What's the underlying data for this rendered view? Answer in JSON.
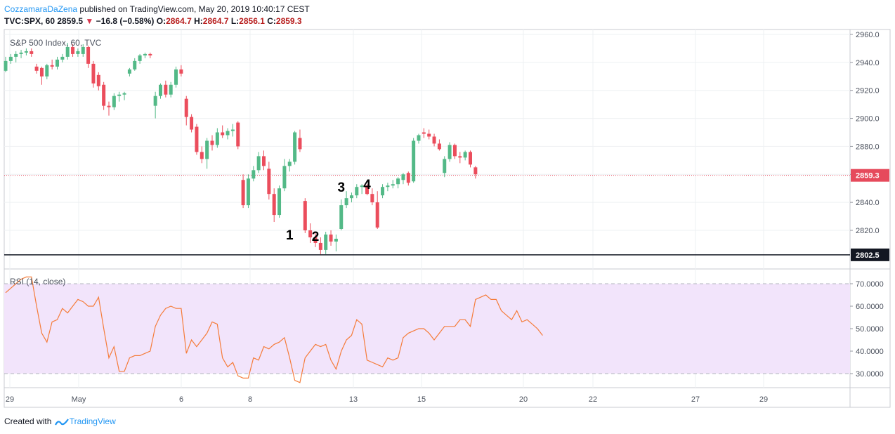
{
  "header": {
    "author": "CozzamaraDaZena",
    "published_text": "published on TradingView.com, May 20, 2019 10:40:17 CEST",
    "symbol": "TVC:SPX, 60",
    "last": "2859.5",
    "change": "−16.8 (−0.58%)",
    "o_label": "O:",
    "o_value": "2864.7",
    "h_label": "H:",
    "h_value": "2864.7",
    "l_label": "L:",
    "l_value": "2856.1",
    "c_label": "C:",
    "c_value": "2859.3"
  },
  "footer": {
    "created_with": "Created with",
    "brand": "TradingView"
  },
  "colors": {
    "up": "#53b987",
    "down": "#eb4d5c",
    "rsi_line": "#f57c3a",
    "rsi_band": "#f2e4fb",
    "price_line": "#e64a5c",
    "accent": "#2196f3"
  },
  "chart_data": [
    {
      "type": "candlestick",
      "title": "S&P 500 Index, 60, TVC",
      "x_tick_labels": [
        "29",
        "May",
        "6",
        "8",
        "13",
        "15",
        "20",
        "22",
        "27",
        "29"
      ],
      "y_tick_labels": [
        "2960.0",
        "2940.0",
        "2920.0",
        "2900.0",
        "2880.0",
        "2860.0",
        "2840.0",
        "2820.0"
      ],
      "ylim": [
        2800,
        2964
      ],
      "current_price_label": "2859.3",
      "current_price": 2859.3,
      "support_level_label": "2802.5",
      "support_level": 2802.5,
      "annotations": [
        {
          "text": "1",
          "bar": 55,
          "price": 2817
        },
        {
          "text": "2",
          "bar": 60,
          "price": 2816
        },
        {
          "text": "3",
          "bar": 65,
          "price": 2851
        },
        {
          "text": "4",
          "bar": 70,
          "price": 2853
        }
      ],
      "candles": [
        {
          "o": 2934,
          "h": 2944,
          "l": 2933,
          "c": 2941
        },
        {
          "o": 2941,
          "h": 2946,
          "l": 2939,
          "c": 2944
        },
        {
          "o": 2944,
          "h": 2948,
          "l": 2940,
          "c": 2946
        },
        {
          "o": 2946,
          "h": 2949,
          "l": 2943,
          "c": 2947
        },
        {
          "o": 2947,
          "h": 2950,
          "l": 2945,
          "c": 2948
        },
        {
          "o": 2948,
          "h": 2950,
          "l": 2944,
          "c": 2946
        },
        {
          "o": 2937,
          "h": 2939,
          "l": 2932,
          "c": 2934
        },
        {
          "o": 2936,
          "h": 2937,
          "l": 2924,
          "c": 2930
        },
        {
          "o": 2930,
          "h": 2939,
          "l": 2928,
          "c": 2938
        },
        {
          "o": 2938,
          "h": 2942,
          "l": 2935,
          "c": 2937
        },
        {
          "o": 2937,
          "h": 2944,
          "l": 2935,
          "c": 2942
        },
        {
          "o": 2942,
          "h": 2946,
          "l": 2940,
          "c": 2944
        },
        {
          "o": 2944,
          "h": 2954,
          "l": 2942,
          "c": 2951
        },
        {
          "o": 2951,
          "h": 2953,
          "l": 2944,
          "c": 2946
        },
        {
          "o": 2946,
          "h": 2950,
          "l": 2944,
          "c": 2948
        },
        {
          "o": 2946,
          "h": 2953,
          "l": 2944,
          "c": 2951
        },
        {
          "o": 2951,
          "h": 2952,
          "l": 2936,
          "c": 2939
        },
        {
          "o": 2939,
          "h": 2941,
          "l": 2922,
          "c": 2925
        },
        {
          "o": 2931,
          "h": 2933,
          "l": 2920,
          "c": 2923
        },
        {
          "o": 2924,
          "h": 2926,
          "l": 2906,
          "c": 2909
        },
        {
          "o": 2909,
          "h": 2912,
          "l": 2902,
          "c": 2908
        },
        {
          "o": 2908,
          "h": 2918,
          "l": 2906,
          "c": 2916
        },
        {
          "o": 2916,
          "h": 2919,
          "l": 2912,
          "c": 2917
        },
        {
          "o": 2917,
          "h": 2919,
          "l": 2913,
          "c": 2918
        },
        {
          "o": 2932,
          "h": 2936,
          "l": 2930,
          "c": 2935
        },
        {
          "o": 2935,
          "h": 2943,
          "l": 2934,
          "c": 2941
        },
        {
          "o": 2941,
          "h": 2946,
          "l": 2939,
          "c": 2945
        },
        {
          "o": 2945,
          "h": 2947,
          "l": 2943,
          "c": 2946
        },
        {
          "o": 2946,
          "h": 2947,
          "l": 2943,
          "c": 2945
        },
        {
          "o": 2909,
          "h": 2919,
          "l": 2900,
          "c": 2916
        },
        {
          "o": 2916,
          "h": 2925,
          "l": 2914,
          "c": 2924
        },
        {
          "o": 2924,
          "h": 2927,
          "l": 2915,
          "c": 2917
        },
        {
          "o": 2917,
          "h": 2926,
          "l": 2915,
          "c": 2924
        },
        {
          "o": 2924,
          "h": 2937,
          "l": 2922,
          "c": 2935
        },
        {
          "o": 2935,
          "h": 2938,
          "l": 2930,
          "c": 2932
        },
        {
          "o": 2914,
          "h": 2916,
          "l": 2895,
          "c": 2901
        },
        {
          "o": 2901,
          "h": 2903,
          "l": 2890,
          "c": 2892
        },
        {
          "o": 2894,
          "h": 2896,
          "l": 2874,
          "c": 2876
        },
        {
          "o": 2876,
          "h": 2880,
          "l": 2868,
          "c": 2871
        },
        {
          "o": 2871,
          "h": 2886,
          "l": 2864,
          "c": 2884
        },
        {
          "o": 2884,
          "h": 2888,
          "l": 2877,
          "c": 2881
        },
        {
          "o": 2881,
          "h": 2893,
          "l": 2879,
          "c": 2890
        },
        {
          "o": 2890,
          "h": 2895,
          "l": 2886,
          "c": 2888
        },
        {
          "o": 2888,
          "h": 2893,
          "l": 2885,
          "c": 2891
        },
        {
          "o": 2891,
          "h": 2896,
          "l": 2887,
          "c": 2892
        },
        {
          "o": 2897,
          "h": 2898,
          "l": 2878,
          "c": 2880
        },
        {
          "o": 2856,
          "h": 2860,
          "l": 2836,
          "c": 2838
        },
        {
          "o": 2838,
          "h": 2860,
          "l": 2836,
          "c": 2857
        },
        {
          "o": 2857,
          "h": 2866,
          "l": 2855,
          "c": 2863
        },
        {
          "o": 2863,
          "h": 2876,
          "l": 2861,
          "c": 2873
        },
        {
          "o": 2873,
          "h": 2877,
          "l": 2863,
          "c": 2866
        },
        {
          "o": 2864,
          "h": 2869,
          "l": 2842,
          "c": 2846
        },
        {
          "o": 2846,
          "h": 2850,
          "l": 2826,
          "c": 2831
        },
        {
          "o": 2831,
          "h": 2852,
          "l": 2829,
          "c": 2850
        },
        {
          "o": 2850,
          "h": 2871,
          "l": 2848,
          "c": 2866
        },
        {
          "o": 2866,
          "h": 2871,
          "l": 2862,
          "c": 2869
        },
        {
          "o": 2869,
          "h": 2891,
          "l": 2867,
          "c": 2890
        },
        {
          "o": 2886,
          "h": 2892,
          "l": 2876,
          "c": 2878
        },
        {
          "o": 2841,
          "h": 2843,
          "l": 2818,
          "c": 2820
        },
        {
          "o": 2820,
          "h": 2825,
          "l": 2811,
          "c": 2815
        },
        {
          "o": 2815,
          "h": 2819,
          "l": 2808,
          "c": 2811
        },
        {
          "o": 2811,
          "h": 2815,
          "l": 2803,
          "c": 2806
        },
        {
          "o": 2806,
          "h": 2819,
          "l": 2803,
          "c": 2817
        },
        {
          "o": 2817,
          "h": 2820,
          "l": 2809,
          "c": 2812
        },
        {
          "o": 2812,
          "h": 2817,
          "l": 2805,
          "c": 2814
        },
        {
          "o": 2821,
          "h": 2842,
          "l": 2820,
          "c": 2838
        },
        {
          "o": 2838,
          "h": 2848,
          "l": 2836,
          "c": 2843
        },
        {
          "o": 2843,
          "h": 2847,
          "l": 2840,
          "c": 2845
        },
        {
          "o": 2845,
          "h": 2853,
          "l": 2843,
          "c": 2851
        },
        {
          "o": 2851,
          "h": 2853,
          "l": 2846,
          "c": 2852
        },
        {
          "o": 2852,
          "h": 2853,
          "l": 2845,
          "c": 2846
        },
        {
          "o": 2846,
          "h": 2850,
          "l": 2838,
          "c": 2840
        },
        {
          "o": 2840,
          "h": 2848,
          "l": 2821,
          "c": 2822
        },
        {
          "o": 2845,
          "h": 2853,
          "l": 2843,
          "c": 2851
        },
        {
          "o": 2851,
          "h": 2854,
          "l": 2848,
          "c": 2852
        },
        {
          "o": 2852,
          "h": 2856,
          "l": 2850,
          "c": 2853
        },
        {
          "o": 2853,
          "h": 2858,
          "l": 2850,
          "c": 2857
        },
        {
          "o": 2856,
          "h": 2861,
          "l": 2853,
          "c": 2860
        },
        {
          "o": 2861,
          "h": 2862,
          "l": 2852,
          "c": 2854
        },
        {
          "o": 2855,
          "h": 2886,
          "l": 2854,
          "c": 2884
        },
        {
          "o": 2884,
          "h": 2889,
          "l": 2882,
          "c": 2888
        },
        {
          "o": 2890,
          "h": 2893,
          "l": 2886,
          "c": 2889
        },
        {
          "o": 2889,
          "h": 2892,
          "l": 2885,
          "c": 2887
        },
        {
          "o": 2887,
          "h": 2889,
          "l": 2880,
          "c": 2882
        },
        {
          "o": 2882,
          "h": 2885,
          "l": 2877,
          "c": 2878
        },
        {
          "o": 2861,
          "h": 2873,
          "l": 2858,
          "c": 2871
        },
        {
          "o": 2871,
          "h": 2883,
          "l": 2869,
          "c": 2881
        },
        {
          "o": 2881,
          "h": 2882,
          "l": 2871,
          "c": 2873
        },
        {
          "o": 2873,
          "h": 2876,
          "l": 2868,
          "c": 2872
        },
        {
          "o": 2872,
          "h": 2877,
          "l": 2870,
          "c": 2876
        },
        {
          "o": 2876,
          "h": 2877,
          "l": 2865,
          "c": 2867
        },
        {
          "o": 2865,
          "h": 2866,
          "l": 2857,
          "c": 2860
        }
      ]
    },
    {
      "type": "line",
      "title": "RSI (14, close)",
      "y_tick_labels": [
        "70.0000",
        "60.0000",
        "50.0000",
        "40.0000",
        "30.0000"
      ],
      "ylim": [
        26,
        74
      ],
      "band": [
        30,
        70
      ],
      "values": [
        66,
        68,
        70,
        72,
        73,
        73,
        60,
        48,
        44,
        53,
        54,
        59,
        57,
        60,
        63,
        62,
        60,
        60,
        64,
        50,
        37,
        42,
        31,
        31,
        37,
        38,
        38,
        39,
        40,
        51,
        56,
        59,
        60,
        59,
        59,
        39,
        45,
        42,
        45,
        48,
        53,
        52,
        37,
        33,
        35,
        29,
        28,
        28,
        37,
        36,
        42,
        41,
        43,
        44,
        46,
        37,
        27,
        26,
        37,
        40,
        43,
        42,
        43,
        36,
        32,
        40,
        45,
        47,
        54,
        52,
        36,
        35,
        34,
        33,
        37,
        36,
        37,
        46,
        48,
        49,
        50,
        50,
        48,
        45,
        48,
        51,
        51,
        51,
        54,
        54,
        51,
        63,
        64,
        65,
        63,
        63,
        58,
        56,
        54,
        58,
        53,
        54,
        52,
        50,
        47
      ]
    }
  ]
}
